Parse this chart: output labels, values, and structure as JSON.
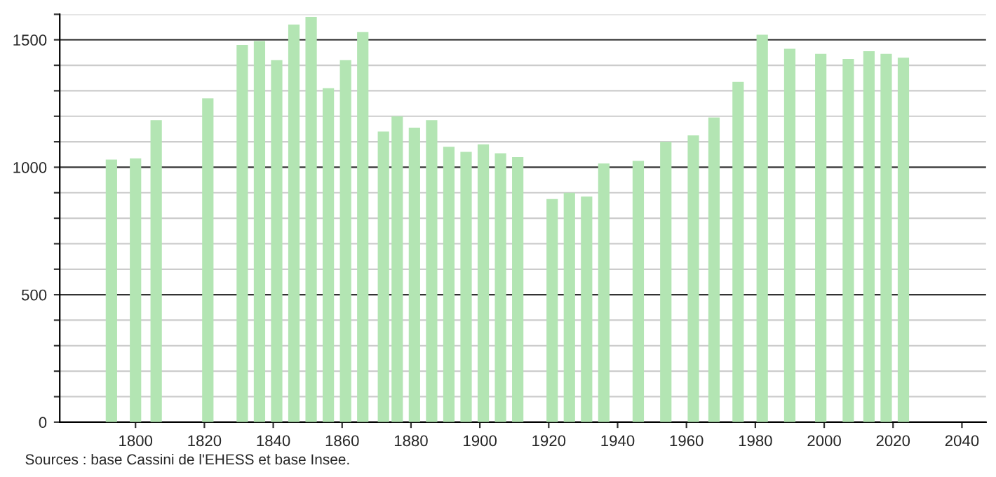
{
  "chart_data": {
    "type": "bar",
    "x": [
      1793,
      1800,
      1806,
      1821,
      1831,
      1836,
      1841,
      1846,
      1851,
      1856,
      1861,
      1866,
      1872,
      1876,
      1881,
      1886,
      1891,
      1896,
      1901,
      1906,
      1911,
      1921,
      1926,
      1931,
      1936,
      1946,
      1954,
      1962,
      1968,
      1975,
      1982,
      1990,
      1999,
      2007,
      2013,
      2018,
      2023
    ],
    "values": [
      1030,
      1035,
      1185,
      1270,
      1480,
      1495,
      1420,
      1560,
      1590,
      1310,
      1420,
      1530,
      1140,
      1200,
      1155,
      1185,
      1080,
      1060,
      1090,
      1055,
      1040,
      875,
      900,
      885,
      1015,
      1025,
      1100,
      1125,
      1195,
      1335,
      1520,
      1465,
      1445,
      1425,
      1455,
      1445,
      1430
    ],
    "color": "#b3e5b3",
    "xlim": [
      1778,
      2047
    ],
    "xticks": [
      1800,
      1820,
      1840,
      1860,
      1880,
      1900,
      1920,
      1940,
      1960,
      1980,
      2000,
      2020,
      2040
    ],
    "ylim": [
      0,
      1600
    ],
    "yticks": [
      0,
      {
        "value": 100,
        "label": null
      },
      {
        "value": 200,
        "label": null
      },
      {
        "value": 300,
        "label": null
      },
      {
        "value": 400,
        "label": null
      },
      500,
      {
        "value": 600,
        "label": null
      },
      {
        "value": 700,
        "label": null
      },
      {
        "value": 800,
        "label": null
      },
      {
        "value": 900,
        "label": null
      },
      1000,
      {
        "value": 1100,
        "label": null
      },
      {
        "value": 1200,
        "label": null
      },
      {
        "value": 1300,
        "label": null
      },
      {
        "value": 1400,
        "label": null
      },
      1500,
      {
        "value": 1600,
        "label": null
      }
    ],
    "grid": "y",
    "annotations": [
      "Sources : base Cassini de l'EHESS et base Insee."
    ]
  }
}
